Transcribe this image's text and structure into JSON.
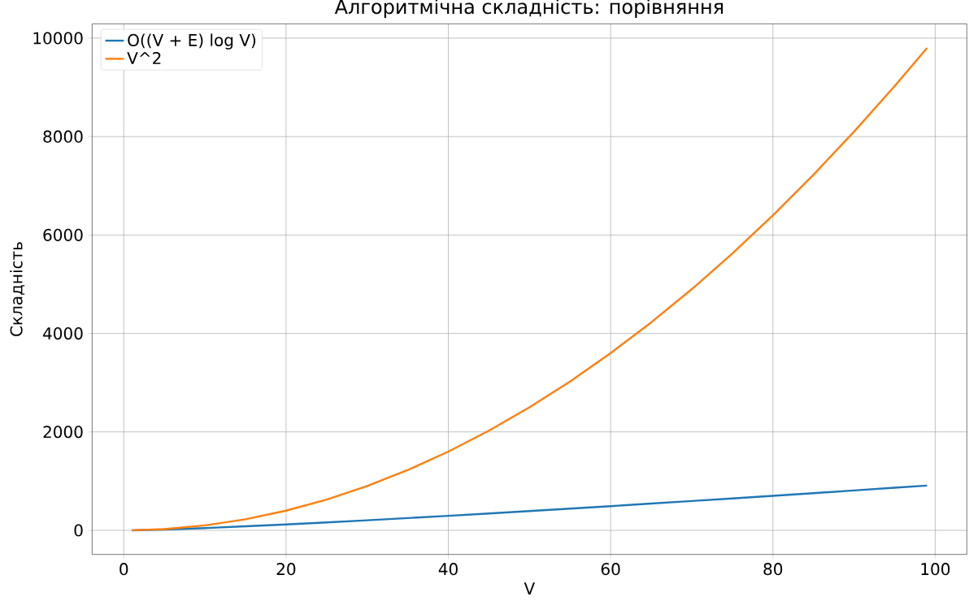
{
  "chart_data": {
    "type": "line",
    "title": "Алгоритмічна складність: порівняння",
    "xlabel": "V",
    "ylabel": "Складність",
    "x": [
      1,
      5,
      10,
      15,
      20,
      25,
      30,
      35,
      40,
      45,
      50,
      55,
      60,
      65,
      70,
      75,
      80,
      85,
      90,
      95,
      99
    ],
    "series": [
      {
        "name": "O((V + E) log V)",
        "color": "#1f77b4",
        "values": [
          0,
          16,
          46,
          81,
          120,
          161,
          204,
          249,
          295,
          343,
          391,
          441,
          491,
          543,
          595,
          648,
          701,
          755,
          810,
          865,
          910
        ]
      },
      {
        "name": "V^2",
        "color": "#ff7f0e",
        "values": [
          1,
          25,
          100,
          225,
          400,
          625,
          900,
          1225,
          1600,
          2025,
          2500,
          3025,
          3600,
          4225,
          4900,
          5625,
          6400,
          7225,
          8100,
          9025,
          9801
        ]
      }
    ],
    "xlim": [
      -3.9,
      103.9
    ],
    "ylim": [
      -490,
      10291
    ],
    "xticks": [
      0,
      20,
      40,
      60,
      80,
      100
    ],
    "yticks": [
      0,
      2000,
      4000,
      6000,
      8000,
      10000
    ],
    "grid": true,
    "legend": "top left",
    "marker": "none",
    "line_style": "solid"
  }
}
